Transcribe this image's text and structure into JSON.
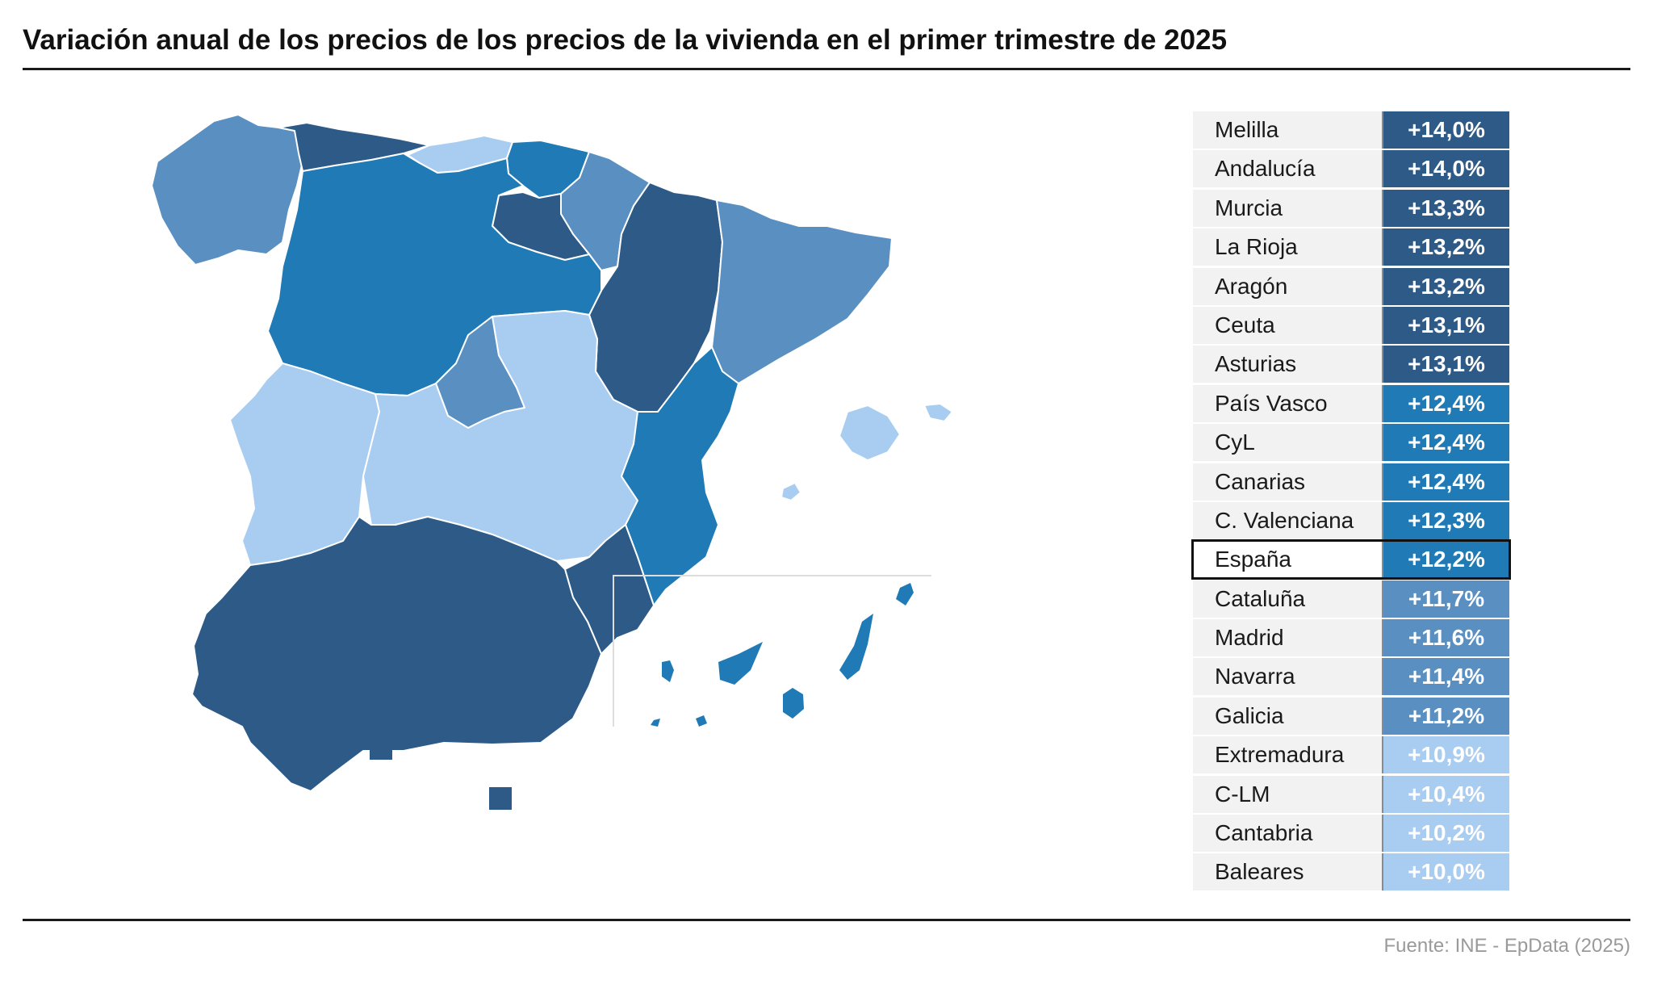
{
  "title": "Variación anual de los precios de los precios de la vivienda en el primer trimestre de 2025",
  "source": "Fuente: INE - EpData (2025)",
  "colors": {
    "dark": "#2d5a86",
    "mid": "#1f7ab5",
    "light_mid": "#5a8fc2",
    "light": "#a8cdf1"
  },
  "regions": [
    {
      "name": "Melilla",
      "value": "+14,0%",
      "change": 14.0,
      "color": "#2d5a86"
    },
    {
      "name": "Andalucía",
      "value": "+14,0%",
      "change": 14.0,
      "color": "#2d5a86"
    },
    {
      "name": "Murcia",
      "value": "+13,3%",
      "change": 13.3,
      "color": "#2d5a86"
    },
    {
      "name": "La Rioja",
      "value": "+13,2%",
      "change": 13.2,
      "color": "#2d5a86"
    },
    {
      "name": "Aragón",
      "value": "+13,2%",
      "change": 13.2,
      "color": "#2d5a86"
    },
    {
      "name": "Ceuta",
      "value": "+13,1%",
      "change": 13.1,
      "color": "#2d5a86"
    },
    {
      "name": "Asturias",
      "value": "+13,1%",
      "change": 13.1,
      "color": "#2d5a86"
    },
    {
      "name": "País Vasco",
      "value": "+12,4%",
      "change": 12.4,
      "color": "#1f7ab5"
    },
    {
      "name": "CyL",
      "value": "+12,4%",
      "change": 12.4,
      "color": "#1f7ab5"
    },
    {
      "name": "Canarias",
      "value": "+12,4%",
      "change": 12.4,
      "color": "#1f7ab5"
    },
    {
      "name": "C. Valenciana",
      "value": "+12,3%",
      "change": 12.3,
      "color": "#1f7ab5"
    },
    {
      "name": "España",
      "value": "+12,2%",
      "change": 12.2,
      "color": "#1f7ab5",
      "highlight": true
    },
    {
      "name": "Cataluña",
      "value": "+11,7%",
      "change": 11.7,
      "color": "#5a8fc2"
    },
    {
      "name": "Madrid",
      "value": "+11,6%",
      "change": 11.6,
      "color": "#5a8fc2"
    },
    {
      "name": "Navarra",
      "value": "+11,4%",
      "change": 11.4,
      "color": "#5a8fc2"
    },
    {
      "name": "Galicia",
      "value": "+11,2%",
      "change": 11.2,
      "color": "#5a8fc2"
    },
    {
      "name": "Extremadura",
      "value": "+10,9%",
      "change": 10.9,
      "color": "#a8cdf1"
    },
    {
      "name": "C-LM",
      "value": "+10,4%",
      "change": 10.4,
      "color": "#a8cdf1"
    },
    {
      "name": "Cantabria",
      "value": "+10,2%",
      "change": 10.2,
      "color": "#a8cdf1"
    },
    {
      "name": "Baleares",
      "value": "+10,0%",
      "change": 10.0,
      "color": "#a8cdf1"
    }
  ]
}
